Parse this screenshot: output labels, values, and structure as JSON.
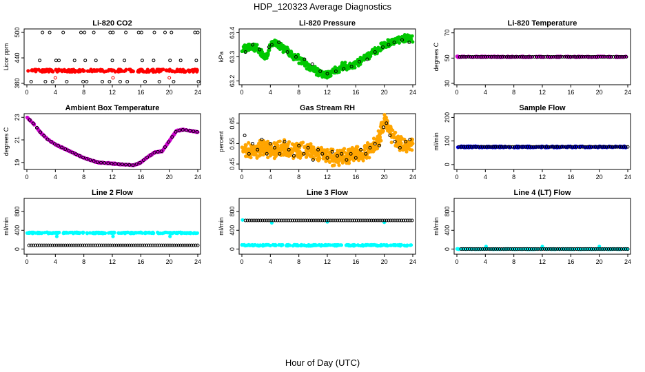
{
  "title": "HDP_120323  Average Diagnostics",
  "xlabel": "Hour of Day (UTC)",
  "chart_data": [
    {
      "type": "scatter",
      "title": "Li-820 CO2",
      "ylabel": "Licor ppm",
      "xlim": [
        0,
        24
      ],
      "ylim": [
        380,
        505
      ],
      "xticks": [
        0,
        4,
        8,
        12,
        16,
        20,
        24
      ],
      "yticks": [
        380,
        440,
        500
      ],
      "series": [
        {
          "name": "Licor ppm",
          "color": "#ff0000",
          "marker": "filled",
          "kind": "band",
          "x_range": [
            0,
            24
          ],
          "center": 410,
          "halfwidth": 3,
          "noise": 1.5
        },
        {
          "name": "high",
          "color": "#000000",
          "marker": "open",
          "x": [
            2.2,
            3.2,
            5.1,
            7.6,
            8.1,
            9.4,
            11.7,
            12.1,
            13.9,
            15.7,
            16.1,
            17.9,
            19.4,
            20.3,
            23.6,
            24.0
          ],
          "y": [
            500,
            500,
            500,
            500,
            500,
            500,
            500,
            500,
            500,
            500,
            500,
            500,
            500,
            500,
            500,
            500
          ]
        },
        {
          "name": "mid",
          "color": "#000000",
          "marker": "open",
          "x": [
            1.8,
            4.1,
            4.5,
            6.7,
            8.2,
            9.7,
            12.0,
            13.7,
            16.2,
            17.8,
            20.1,
            21.6,
            23.8
          ],
          "y": [
            434,
            434,
            434,
            434,
            434,
            434,
            434,
            434,
            434,
            434,
            434,
            434,
            434
          ]
        },
        {
          "name": "low",
          "color": "#000000",
          "marker": "open",
          "x": [
            0.6,
            2.6,
            3.6,
            5.6,
            7.9,
            8.4,
            10.6,
            11.6,
            13.1,
            14.1,
            16.6,
            18.6,
            20.6,
            24.1
          ],
          "y": [
            384,
            384,
            384,
            384,
            384,
            384,
            384,
            384,
            384,
            384,
            384,
            384,
            384,
            384
          ]
        },
        {
          "name": "excursion",
          "color": "#ff0000",
          "marker": "open",
          "x": [
            4.0,
            12.1,
            20.0
          ],
          "y": [
            393,
            393,
            393
          ]
        }
      ]
    },
    {
      "type": "scatter",
      "title": "Li-820 Pressure",
      "ylabel": "kPa",
      "xlim": [
        0,
        24
      ],
      "ylim": [
        63.19,
        63.41
      ],
      "xticks": [
        0,
        4,
        8,
        12,
        16,
        20,
        24
      ],
      "yticks": [
        63.2,
        63.3,
        63.4
      ],
      "series": [
        {
          "name": "pressure",
          "color": "#00c800",
          "marker": "filled",
          "kind": "curve",
          "cx": [
            0,
            1,
            2,
            3,
            3.5,
            4,
            4.5,
            5,
            6,
            7,
            8,
            9,
            10,
            11,
            12,
            13,
            14,
            15,
            16,
            17,
            18,
            19,
            20,
            21,
            22,
            23,
            24
          ],
          "cy": [
            63.33,
            63.34,
            63.34,
            63.31,
            63.3,
            63.35,
            63.36,
            63.35,
            63.33,
            63.31,
            63.29,
            63.27,
            63.25,
            63.23,
            63.23,
            63.24,
            63.26,
            63.26,
            63.27,
            63.29,
            63.31,
            63.33,
            63.35,
            63.36,
            63.37,
            63.38,
            63.37
          ],
          "halfwidth": 0.012,
          "noise": 0.006,
          "perHour": 12
        },
        {
          "name": "samples",
          "color": "#000000",
          "marker": "open",
          "x": [
            0.5,
            1.5,
            2.5,
            3.8,
            4.2,
            5.2,
            6.4,
            7.6,
            8.8,
            9.9,
            11.0,
            12.0,
            13.2,
            14.3,
            15.4,
            16.5,
            17.6,
            18.7,
            19.8,
            20.6,
            21.4,
            22.5,
            23.5
          ],
          "y": [
            63.32,
            63.35,
            63.33,
            63.34,
            63.35,
            63.36,
            63.32,
            63.3,
            63.29,
            63.27,
            63.24,
            63.23,
            63.24,
            63.25,
            63.26,
            63.28,
            63.29,
            63.32,
            63.34,
            63.35,
            63.36,
            63.37,
            63.36
          ]
        }
      ]
    },
    {
      "type": "scatter",
      "title": "Li-820 Temperature",
      "ylabel": "degrees C",
      "xlim": [
        0,
        24
      ],
      "ylim": [
        30,
        72
      ],
      "xticks": [
        0,
        4,
        8,
        12,
        16,
        20,
        24
      ],
      "yticks": [
        30,
        50,
        70
      ],
      "series": [
        {
          "name": "temperature",
          "color": "#cc00cc",
          "marker": "filled",
          "kind": "band",
          "x_range": [
            0,
            24
          ],
          "center": 51,
          "halfwidth": 0.4,
          "noise": 0.2
        },
        {
          "name": "samples",
          "color": "#000000",
          "marker": "open",
          "kind": "grid",
          "x_range": [
            0.4,
            24
          ],
          "step": 0.3,
          "y": 51
        }
      ]
    },
    {
      "type": "scatter",
      "title": "Ambient Box Temperature",
      "ylabel": "degrees C",
      "xlim": [
        0,
        24
      ],
      "ylim": [
        18.5,
        23.2
      ],
      "xticks": [
        0,
        4,
        8,
        12,
        16,
        20,
        24
      ],
      "yticks": [
        19,
        21,
        23
      ],
      "series": [
        {
          "name": "box temp",
          "color": "#cc00cc",
          "marker": "filled",
          "kind": "curve",
          "cx": [
            0,
            1,
            2,
            3,
            4,
            5,
            6,
            7,
            8,
            9,
            10,
            11,
            12,
            13,
            14,
            15,
            16,
            17,
            18,
            19,
            20,
            21,
            22,
            23,
            24
          ],
          "cy": [
            23.0,
            22.4,
            21.6,
            21.0,
            20.6,
            20.3,
            20.0,
            19.7,
            19.4,
            19.2,
            19.0,
            18.95,
            18.9,
            18.85,
            18.8,
            18.75,
            19.0,
            19.5,
            19.9,
            20.0,
            20.9,
            21.8,
            21.9,
            21.8,
            21.7
          ],
          "halfwidth": 0.03,
          "noise": 0.02,
          "perHour": 12
        },
        {
          "name": "samples",
          "color": "#000000",
          "marker": "open",
          "kind": "grid",
          "x_range": [
            0.4,
            24
          ],
          "step": 0.5,
          "follow": 0
        }
      ]
    },
    {
      "type": "scatter",
      "title": "Gas Stream RH",
      "ylabel": "percent",
      "xlim": [
        0,
        24
      ],
      "ylim": [
        0.43,
        0.69
      ],
      "xticks": [
        0,
        4,
        8,
        12,
        16,
        20,
        24
      ],
      "yticks": [
        0.45,
        0.55,
        0.65
      ],
      "series": [
        {
          "name": "RH",
          "color": "#ffa500",
          "marker": "filled",
          "kind": "curve",
          "cx": [
            0,
            1,
            2,
            3,
            4,
            5,
            6,
            7,
            8,
            9,
            10,
            11,
            12,
            13,
            14,
            15,
            16,
            17,
            18,
            19,
            19.5,
            20,
            21,
            22,
            23,
            24
          ],
          "cy": [
            0.53,
            0.52,
            0.52,
            0.53,
            0.52,
            0.52,
            0.53,
            0.52,
            0.52,
            0.52,
            0.51,
            0.5,
            0.49,
            0.48,
            0.49,
            0.49,
            0.5,
            0.51,
            0.52,
            0.56,
            0.6,
            0.66,
            0.6,
            0.55,
            0.54,
            0.55
          ],
          "halfwidth": 0.03,
          "noise": 0.015,
          "perHour": 14
        },
        {
          "name": "samples",
          "color": "#000000",
          "marker": "open",
          "x": [
            0.4,
            1.0,
            1.5,
            2.2,
            2.8,
            3.5,
            4.0,
            4.6,
            5.3,
            6.0,
            6.6,
            7.3,
            8.0,
            8.7,
            9.3,
            10.0,
            10.7,
            11.3,
            12.0,
            12.7,
            13.4,
            14.0,
            14.7,
            15.3,
            16.0,
            16.7,
            17.4,
            18.0,
            18.7,
            19.3,
            19.9,
            20.3,
            20.8,
            21.5,
            22.2,
            23.0,
            23.6
          ],
          "y": [
            0.59,
            0.5,
            0.55,
            0.52,
            0.57,
            0.5,
            0.55,
            0.53,
            0.5,
            0.56,
            0.52,
            0.49,
            0.54,
            0.5,
            0.53,
            0.47,
            0.52,
            0.5,
            0.48,
            0.51,
            0.49,
            0.5,
            0.47,
            0.5,
            0.48,
            0.52,
            0.5,
            0.53,
            0.55,
            0.54,
            0.63,
            0.65,
            0.59,
            0.56,
            0.53,
            0.56,
            0.57
          ]
        }
      ]
    },
    {
      "type": "scatter",
      "title": "Sample Flow",
      "ylabel": "ml/min",
      "xlim": [
        0,
        24
      ],
      "ylim": [
        -15,
        210
      ],
      "xticks": [
        0,
        4,
        8,
        12,
        16,
        20,
        24
      ],
      "yticks": [
        0,
        100,
        200
      ],
      "series": [
        {
          "name": "sample flow",
          "color": "#0000ff",
          "marker": "filled",
          "kind": "band",
          "x_range": [
            0,
            24
          ],
          "center": 75,
          "halfwidth": 3,
          "noise": 1.5
        },
        {
          "name": "samples",
          "color": "#000000",
          "marker": "open",
          "kind": "grid",
          "x_range": [
            0.3,
            24
          ],
          "step": 0.3,
          "y": 75
        }
      ]
    },
    {
      "type": "scatter",
      "title": "Line 2 Flow",
      "ylabel": "ml/min",
      "xlim": [
        0,
        24
      ],
      "ylim": [
        -80,
        1050
      ],
      "xticks": [
        0,
        4,
        8,
        12,
        16,
        20,
        24
      ],
      "yticks": [
        0,
        400,
        800
      ],
      "series": [
        {
          "name": "line 2",
          "color": "#00ffff",
          "marker": "filled",
          "kind": "band",
          "x_range": [
            0,
            24
          ],
          "center": 345,
          "halfwidth": 12,
          "noise": 6
        },
        {
          "name": "dips",
          "color": "#00ffff",
          "marker": "filled",
          "x": [
            4.2,
            12.1,
            20.1
          ],
          "y": [
            270,
            270,
            270
          ]
        },
        {
          "name": "samples",
          "color": "#000000",
          "marker": "open",
          "kind": "grid",
          "x_range": [
            0.3,
            24
          ],
          "step": 0.3,
          "y": 80
        }
      ]
    },
    {
      "type": "scatter",
      "title": "Line 3 Flow",
      "ylabel": "ml/min",
      "xlim": [
        0,
        24
      ],
      "ylim": [
        -80,
        1050
      ],
      "xticks": [
        0,
        4,
        8,
        12,
        16,
        20,
        24
      ],
      "yticks": [
        0,
        400,
        800
      ],
      "series": [
        {
          "name": "line 3 low",
          "color": "#00ffff",
          "marker": "filled",
          "kind": "band",
          "x_range": [
            0,
            24
          ],
          "center": 80,
          "halfwidth": 12,
          "noise": 6
        },
        {
          "name": "line 3 high",
          "color": "#00ffff",
          "marker": "filled",
          "x": [
            0.1,
            4.2,
            12.0,
            20.0
          ],
          "y": [
            620,
            560,
            580,
            570
          ]
        },
        {
          "name": "samples",
          "color": "#000000",
          "marker": "open",
          "kind": "grid",
          "x_range": [
            0.5,
            24
          ],
          "step": 0.3,
          "y": 610
        }
      ]
    },
    {
      "type": "scatter",
      "title": "Line 4 (LT) Flow",
      "ylabel": "ml/min",
      "xlim": [
        0,
        24
      ],
      "ylim": [
        -80,
        1050
      ],
      "xticks": [
        0,
        4,
        8,
        12,
        16,
        20,
        24
      ],
      "yticks": [
        0,
        400,
        800
      ],
      "series": [
        {
          "name": "line 4",
          "color": "#00ffff",
          "marker": "filled",
          "kind": "band",
          "x_range": [
            0,
            24
          ],
          "center": 0,
          "halfwidth": 4,
          "noise": 2
        },
        {
          "name": "spikes",
          "color": "#00ffff",
          "marker": "filled",
          "x": [
            0.1,
            4.1,
            12.0,
            20.0
          ],
          "y": [
            5,
            55,
            55,
            55
          ]
        },
        {
          "name": "samples",
          "color": "#000000",
          "marker": "open",
          "kind": "grid",
          "x_range": [
            0.6,
            24
          ],
          "step": 0.3,
          "y": 0
        }
      ]
    }
  ]
}
